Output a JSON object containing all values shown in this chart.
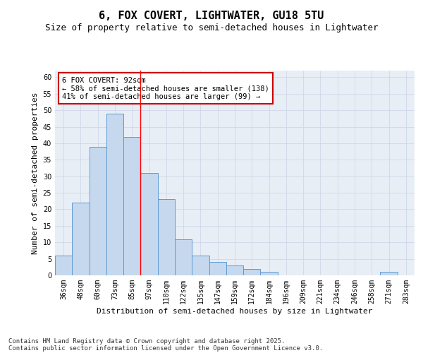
{
  "title": "6, FOX COVERT, LIGHTWATER, GU18 5TU",
  "subtitle": "Size of property relative to semi-detached houses in Lightwater",
  "xlabel": "Distribution of semi-detached houses by size in Lightwater",
  "ylabel": "Number of semi-detached properties",
  "categories": [
    "36sqm",
    "48sqm",
    "60sqm",
    "73sqm",
    "85sqm",
    "97sqm",
    "110sqm",
    "122sqm",
    "135sqm",
    "147sqm",
    "159sqm",
    "172sqm",
    "184sqm",
    "196sqm",
    "209sqm",
    "221sqm",
    "234sqm",
    "246sqm",
    "258sqm",
    "271sqm",
    "283sqm"
  ],
  "values": [
    6,
    22,
    39,
    49,
    42,
    31,
    23,
    11,
    6,
    4,
    3,
    2,
    1,
    0,
    0,
    0,
    0,
    0,
    0,
    1,
    0
  ],
  "bar_color": "#c5d8ed",
  "bar_edge_color": "#5b9bd5",
  "annotation_text": "6 FOX COVERT: 92sqm\n← 58% of semi-detached houses are smaller (138)\n41% of semi-detached houses are larger (99) →",
  "annotation_box_color": "#ffffff",
  "annotation_box_edge_color": "#cc0000",
  "ylim": [
    0,
    62
  ],
  "yticks": [
    0,
    5,
    10,
    15,
    20,
    25,
    30,
    35,
    40,
    45,
    50,
    55,
    60
  ],
  "grid_color": "#d0d8e8",
  "background_color": "#e8eef5",
  "footer_line1": "Contains HM Land Registry data © Crown copyright and database right 2025.",
  "footer_line2": "Contains public sector information licensed under the Open Government Licence v3.0.",
  "title_fontsize": 11,
  "subtitle_fontsize": 9,
  "axis_label_fontsize": 8,
  "tick_fontsize": 7,
  "annotation_fontsize": 7.5,
  "footer_fontsize": 6.5
}
